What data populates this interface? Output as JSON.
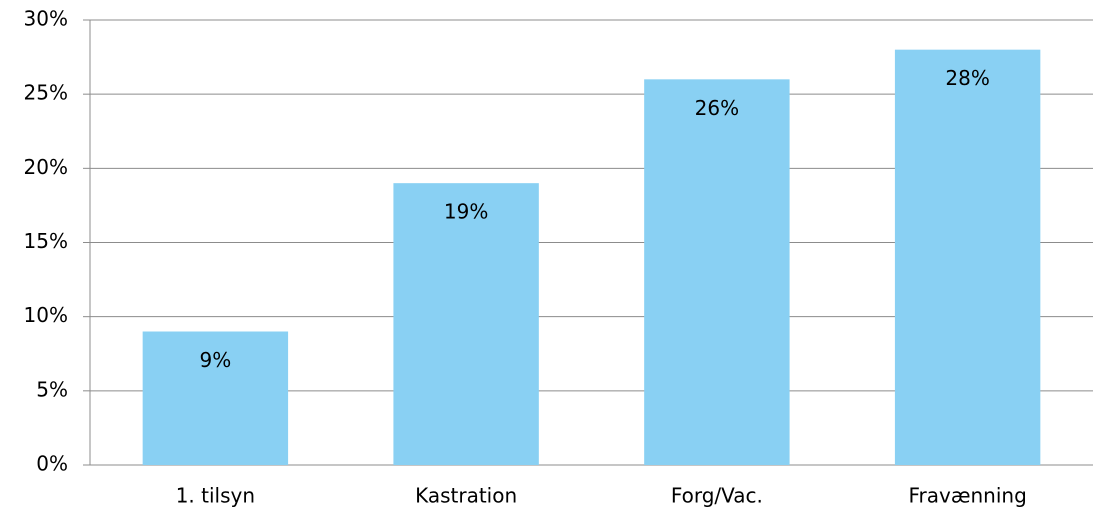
{
  "chart_data": {
    "type": "bar",
    "categories": [
      "1. tilsyn",
      "Kastration",
      "Forg/Vac.",
      "Fravænning"
    ],
    "values": [
      9,
      19,
      26,
      28
    ],
    "value_labels": [
      "9%",
      "19%",
      "26%",
      "28%"
    ],
    "color": "#89d0f3",
    "ylim": [
      0,
      30
    ],
    "yticks": [
      {
        "value": 0,
        "label": "0%"
      },
      {
        "value": 5,
        "label": "5%"
      },
      {
        "value": 10,
        "label": "10%"
      },
      {
        "value": 15,
        "label": "15%"
      },
      {
        "value": 20,
        "label": "20%"
      },
      {
        "value": 25,
        "label": "25%"
      },
      {
        "value": 30,
        "label": "30%"
      }
    ],
    "grid": true
  }
}
